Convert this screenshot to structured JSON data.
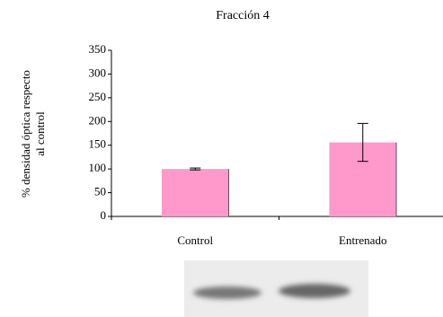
{
  "chart_data": {
    "type": "bar",
    "title": "Fracción 4",
    "ylabel": [
      "% densidad óptica respecto",
      "al control"
    ],
    "categories": [
      "Control",
      "Entrenado"
    ],
    "values": [
      100,
      156
    ],
    "errors": [
      2,
      40
    ],
    "color": "#ff99cc",
    "ylim": [
      0,
      350
    ],
    "yticks": [
      0,
      50,
      100,
      150,
      200,
      250,
      300,
      350
    ],
    "grid": false
  }
}
